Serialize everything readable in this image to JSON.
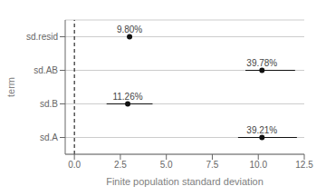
{
  "chart_data": {
    "type": "scatter",
    "categories": [
      "sd.resid",
      "sd.AB",
      "sd.B",
      "sd.A"
    ],
    "values": [
      3.0,
      10.2,
      2.9,
      10.2
    ],
    "ci_low": [
      3.0,
      9.3,
      1.75,
      8.9
    ],
    "ci_high": [
      3.0,
      12.0,
      4.25,
      12.1
    ],
    "annotations": [
      "9.80%",
      "39.78%",
      "11.26%",
      "39.21%"
    ],
    "xlabel": "Finite population standard deviation",
    "ylabel": "term",
    "xlim": [
      -0.5,
      12.5
    ],
    "xticks": [
      {
        "value": 0,
        "label": "0.0"
      },
      2.5,
      {
        "value": 5,
        "label": "5.0"
      },
      7.5,
      {
        "value": 10,
        "label": "10.0"
      },
      12.5
    ],
    "vline_x": 0,
    "color": "#111111",
    "grid": true
  }
}
